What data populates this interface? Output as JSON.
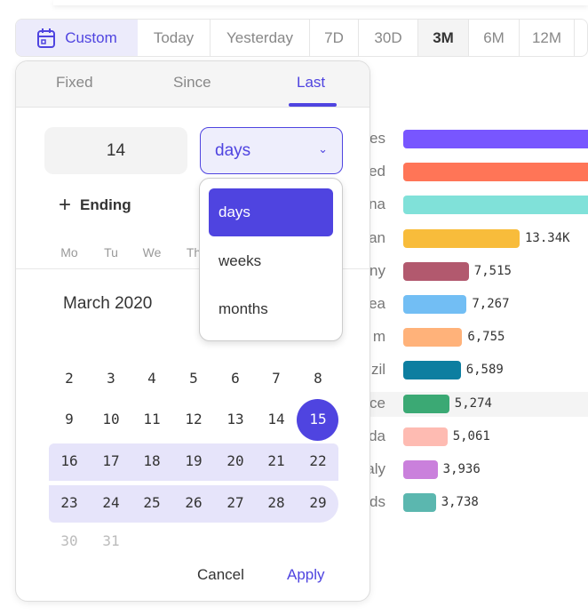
{
  "range_bar": {
    "custom": "Custom",
    "options": [
      "Today",
      "Yesterday",
      "7D",
      "30D",
      "3M",
      "6M",
      "12M"
    ],
    "selected": "3M"
  },
  "popup": {
    "tabs": [
      "Fixed",
      "Since",
      "Last"
    ],
    "active_tab": "Last",
    "count": "14",
    "unit": "days",
    "unit_options": [
      "days",
      "weeks",
      "months"
    ],
    "ending": "Ending",
    "weekdays": [
      "Mo",
      "Tu",
      "We",
      "Th"
    ],
    "month": "March 2020",
    "weeks": [
      [
        "2",
        "3",
        "4",
        "5",
        "6",
        "7",
        "8"
      ],
      [
        "9",
        "10",
        "11",
        "12",
        "13",
        "14",
        "15"
      ],
      [
        "16",
        "17",
        "18",
        "19",
        "20",
        "21",
        "22"
      ],
      [
        "23",
        "24",
        "25",
        "26",
        "27",
        "28",
        "29"
      ],
      [
        "30",
        "31"
      ]
    ],
    "selected_day": "15",
    "cancel": "Cancel",
    "apply": "Apply"
  },
  "accent": "#4f44e0",
  "chart_data": {
    "type": "bar",
    "orientation": "horizontal",
    "labels": [
      "es",
      "ed",
      "na",
      "an",
      "ny",
      "ea",
      "m",
      "zil",
      "ce",
      "da",
      "aly",
      "ds"
    ],
    "values": [
      null,
      null,
      null,
      13340,
      7515,
      7267,
      6755,
      6589,
      5274,
      5061,
      3936,
      3738
    ],
    "value_labels": [
      "",
      "",
      "",
      "13.34K",
      "7,515",
      "7,267",
      "6,755",
      "6,589",
      "5,274",
      "5,061",
      "3,936",
      "3,738"
    ],
    "colors": [
      "#7856ff",
      "#ff7557",
      "#80e1d9",
      "#f8bc3b",
      "#b2596e",
      "#72bef4",
      "#ffb27a",
      "#0d7ea0",
      "#3ba974",
      "#febbb2",
      "#ca80dc",
      "#5bb7af"
    ]
  }
}
